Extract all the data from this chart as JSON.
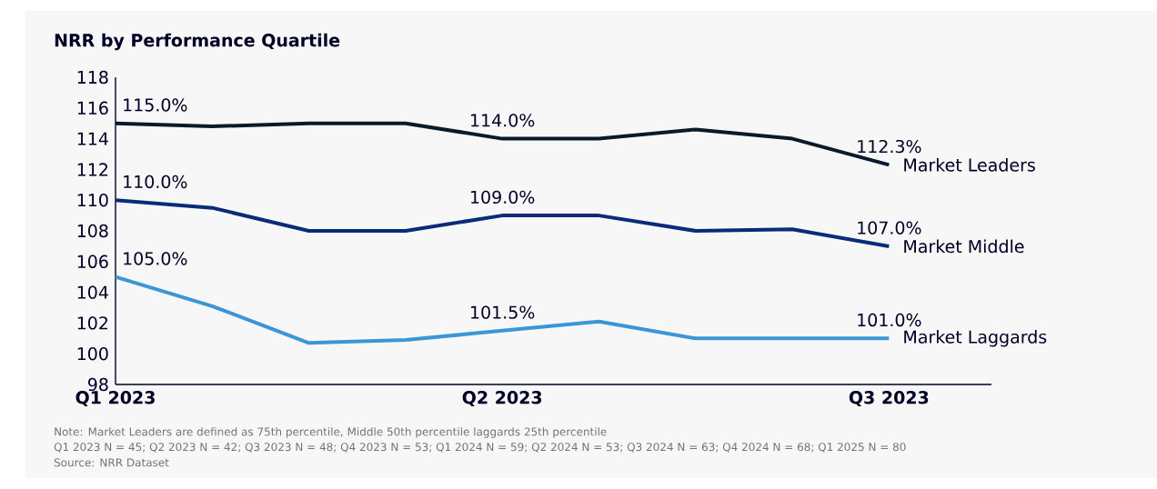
{
  "chart_data": {
    "type": "line",
    "title": "NRR by Performance Quartile",
    "categories": [
      "Q1 2023",
      null,
      null,
      null,
      "Q2  2023",
      null,
      null,
      null,
      "Q3  2023"
    ],
    "ylim": [
      98,
      118
    ],
    "yticks": [
      98,
      100,
      102,
      104,
      106,
      108,
      110,
      112,
      114,
      116,
      118
    ],
    "grid": false,
    "legend": false,
    "marker": "none",
    "line_style": "solid",
    "series": [
      {
        "name": "Market Leaders",
        "color": "#0a1a2a",
        "values": [
          115.0,
          114.8,
          115.0,
          115.0,
          114.0,
          114.0,
          114.6,
          114.0,
          112.3
        ],
        "value_labels": [
          "115.0%",
          null,
          null,
          null,
          "114.0%",
          null,
          null,
          null,
          "112.3%"
        ]
      },
      {
        "name": "Market Middle",
        "color": "#0a2a7a",
        "values": [
          110.0,
          109.5,
          108.0,
          108.0,
          109.0,
          109.0,
          108.0,
          108.1,
          107.0
        ],
        "value_labels": [
          "110.0%",
          null,
          null,
          null,
          "109.0%",
          null,
          null,
          null,
          "107.0%"
        ]
      },
      {
        "name": "Market Laggards",
        "color": "#3a96d6",
        "values": [
          105.0,
          103.1,
          100.7,
          100.9,
          101.5,
          102.1,
          101.0,
          101.0,
          101.0
        ],
        "value_labels": [
          "105.0%",
          null,
          null,
          null,
          "101.5%",
          null,
          null,
          null,
          "101.0%"
        ]
      }
    ],
    "annotations": [
      "Note: Market Leaders are defined as 75th percentile, Middle 50th percentile laggards 25th percentile",
      "Q1 2023 N = 45; Q2 2023 N = 42; Q3 2023 N = 48; Q4 2023 N = 53; Q1 2024 N = 59; Q2 2024 N = 53; Q3 2024 N = 63; Q4 2024 N = 68; Q1 2025 N = 80",
      "Source: NRR Dataset"
    ]
  }
}
